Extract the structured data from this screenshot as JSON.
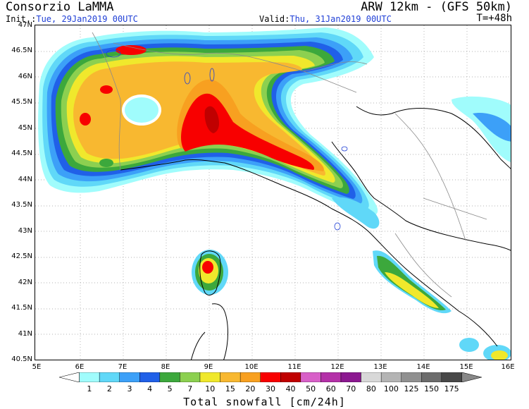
{
  "header": {
    "title_left": "Consorzio LaMMA",
    "title_right": "ARW 12km - (GFS 50km)",
    "init_label": "Init.:",
    "init_value": "Tue, 29Jan2019 00UTC",
    "valid_label": "Valid:",
    "valid_value": "Thu, 31Jan2019 00UTC",
    "time_step": "T=+48h"
  },
  "axes": {
    "lat_labels": [
      "47N",
      "46.5N",
      "46N",
      "45.5N",
      "45N",
      "44.5N",
      "44N",
      "43.5N",
      "43N",
      "42.5N",
      "42N",
      "41.5N",
      "41N",
      "40.5N"
    ],
    "lon_labels": [
      "5E",
      "6E",
      "7E",
      "8E",
      "9E",
      "10E",
      "11E",
      "12E",
      "13E",
      "14E",
      "15E",
      "16E"
    ]
  },
  "legend": {
    "title": "Total snowfall [cm/24h]",
    "levels": [
      "1",
      "2",
      "3",
      "4",
      "5",
      "7",
      "10",
      "15",
      "20",
      "30",
      "40",
      "50",
      "60",
      "70",
      "80",
      "100",
      "125",
      "150",
      "175"
    ],
    "colors": [
      "#a0fcfc",
      "#60d8f8",
      "#3ca0f8",
      "#2060e8",
      "#3ca83c",
      "#8cd050",
      "#f0e82c",
      "#f8b830",
      "#f8a020",
      "#f80000",
      "#c00000",
      "#d860c8",
      "#b430a8",
      "#8c1890",
      "#d8d8d8",
      "#b4b4b4",
      "#909090",
      "#6c6c6c",
      "#484848"
    ]
  }
}
